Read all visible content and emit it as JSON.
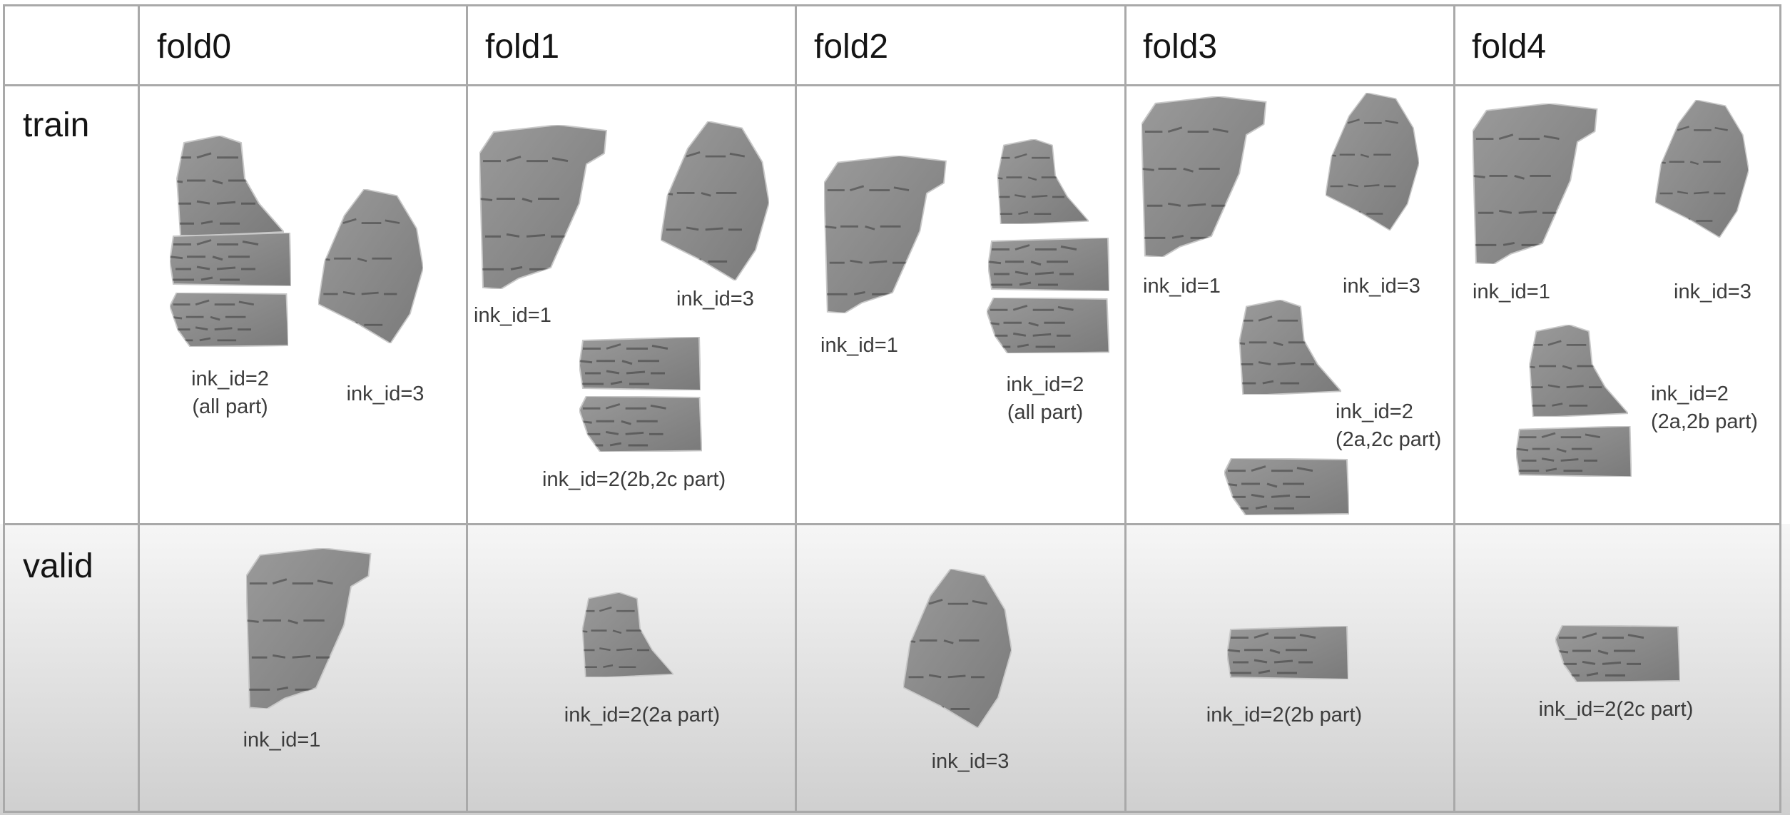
{
  "columns": [
    "fold0",
    "fold1",
    "fold2",
    "fold3",
    "fold4"
  ],
  "rows": [
    "train",
    "valid"
  ],
  "fragment_kinds": [
    "ink_id=1",
    "ink_id=2 (2a part)",
    "ink_id=2 (2b part)",
    "ink_id=2 (2c part)",
    "ink_id=3"
  ],
  "cells": {
    "fold0_train": {
      "labels": [
        "ink_id=2",
        "(all part)",
        "ink_id=3"
      ]
    },
    "fold1_train": {
      "labels": [
        "ink_id=1",
        "ink_id=3",
        "ink_id=2(2b,2c part)"
      ]
    },
    "fold2_train": {
      "labels": [
        "ink_id=1",
        "ink_id=2",
        "(all part)"
      ]
    },
    "fold3_train": {
      "labels": [
        "ink_id=1",
        "ink_id=3",
        "ink_id=2",
        "(2a,2c part)"
      ]
    },
    "fold4_train": {
      "labels": [
        "ink_id=1",
        "ink_id=3",
        "ink_id=2",
        "(2a,2b part)"
      ]
    },
    "fold0_valid": {
      "labels": [
        "ink_id=1"
      ]
    },
    "fold1_valid": {
      "labels": [
        "ink_id=2(2a part)"
      ]
    },
    "fold2_valid": {
      "labels": [
        "ink_id=3"
      ]
    },
    "fold3_valid": {
      "labels": [
        "ink_id=2(2b part)"
      ]
    },
    "fold4_valid": {
      "labels": [
        "ink_id=2(2c part)"
      ]
    }
  }
}
